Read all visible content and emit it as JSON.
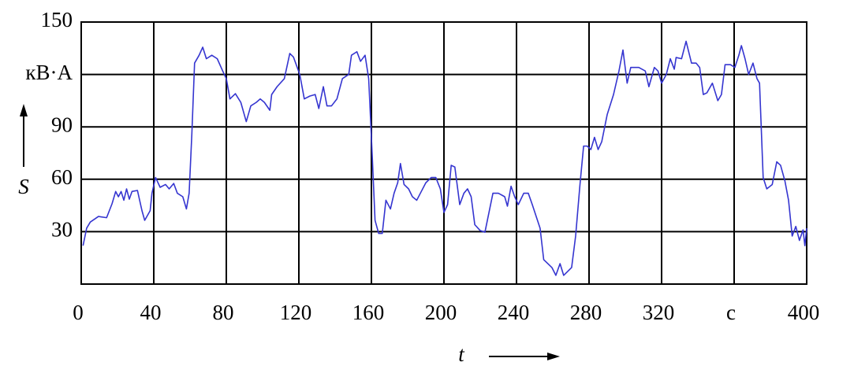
{
  "chart_data": {
    "type": "line",
    "x_label": "t",
    "y_label": "S",
    "xlim": [
      0,
      400
    ],
    "ylim": [
      0,
      150
    ],
    "xticks": [
      0,
      40,
      80,
      120,
      160,
      200,
      240,
      280,
      320,
      {
        "value": 360,
        "label": "с"
      },
      400
    ],
    "yticks": [
      30,
      60,
      90,
      {
        "value": 120,
        "label": "кВ·А"
      },
      150
    ],
    "grid": true,
    "series": [
      {
        "color": "#3535d0",
        "x": [
          1,
          3,
          5,
          9.5,
          14,
          17,
          19,
          20.5,
          22,
          23.5,
          25,
          26.5,
          28,
          31,
          33.5,
          35,
          38,
          39,
          41,
          43.5,
          46.5,
          48.5,
          51,
          53,
          56,
          58,
          59.5,
          61,
          62.5,
          65,
          67,
          69,
          72,
          75,
          78,
          80,
          82,
          85,
          88,
          91,
          93.5,
          96.5,
          98.7,
          101,
          104,
          105,
          108,
          112,
          115,
          117,
          120.5,
          123,
          126,
          129,
          131,
          133.5,
          135.5,
          138,
          141,
          144,
          147.5,
          149,
          152,
          154,
          156.5,
          158.5,
          160.5,
          162,
          164,
          166,
          168,
          170.5,
          172.5,
          174.5,
          176,
          178,
          180.5,
          182.6,
          185,
          187,
          190,
          193,
          195.5,
          198,
          200,
          202,
          204,
          206,
          208.7,
          211,
          213,
          215,
          217,
          220,
          222.6,
          227,
          230,
          233.5,
          235,
          237,
          239,
          241,
          244,
          246.5,
          248.7,
          253,
          255,
          259.5,
          261.7,
          264,
          266,
          268,
          270.4,
          272.6,
          275,
          277,
          279,
          281,
          283,
          285,
          287,
          290,
          293.5,
          296.5,
          298.7,
          301,
          303,
          307.4,
          311,
          313,
          316,
          318,
          320,
          322.6,
          324.8,
          327,
          328,
          331,
          333.5,
          336.5,
          339,
          341,
          343,
          345,
          348,
          351,
          353,
          355,
          358,
          360.4,
          362.6,
          364,
          366,
          368,
          370.4,
          372.6,
          374,
          376,
          378,
          381,
          383.5,
          385.6,
          388,
          390,
          392,
          394,
          396,
          398,
          399,
          400
        ],
        "values": [
          22,
          32,
          35.5,
          38.7,
          38,
          46,
          53,
          50,
          53,
          48,
          54.5,
          48.6,
          53,
          53.6,
          42,
          36.5,
          42,
          52,
          61,
          55.4,
          57,
          54.5,
          57.6,
          52,
          50,
          43,
          52,
          86,
          126.5,
          131,
          135.6,
          129,
          131,
          129,
          122,
          117.6,
          106,
          109,
          104,
          93,
          102,
          104,
          106,
          104,
          99.5,
          108.5,
          113,
          117.6,
          132,
          130,
          120,
          106,
          107.6,
          108.5,
          100.5,
          113,
          102,
          102,
          106,
          117.6,
          120,
          131,
          133,
          127.5,
          131,
          117.6,
          72.5,
          36.5,
          29,
          29,
          48,
          43,
          52,
          58,
          69,
          57,
          54.5,
          50,
          48,
          52,
          58,
          61,
          61,
          54.5,
          41,
          45.5,
          68,
          67,
          45.5,
          52,
          54.5,
          50,
          34,
          30.6,
          29.7,
          52,
          52,
          50,
          44.6,
          56,
          50,
          45.5,
          52,
          52,
          45.5,
          32,
          14,
          9.5,
          5,
          11.7,
          5,
          7,
          9.5,
          27.5,
          57,
          79,
          79,
          77,
          84,
          77,
          81.5,
          97,
          108.5,
          122,
          134,
          115,
          124,
          124,
          122,
          113,
          124,
          122,
          115,
          120,
          129,
          123,
          129.7,
          129,
          139,
          126.5,
          126.5,
          124,
          108.5,
          109.5,
          115,
          105,
          108.5,
          125.6,
          125.6,
          124,
          131,
          136.5,
          129,
          120,
          126.5,
          117.6,
          115,
          61,
          54.5,
          57,
          70,
          68,
          59,
          48,
          27.5,
          33,
          25,
          31,
          22,
          32
        ]
      }
    ]
  }
}
